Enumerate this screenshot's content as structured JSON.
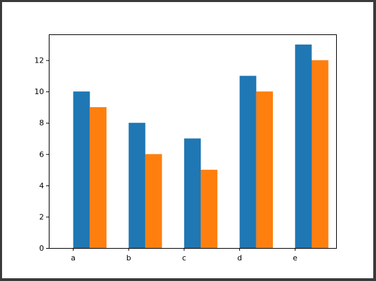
{
  "chart_data": {
    "type": "bar",
    "categories": [
      "a",
      "b",
      "c",
      "d",
      "e"
    ],
    "series": [
      {
        "values": [
          10,
          8,
          7,
          11,
          13
        ],
        "color": "#1f77b4"
      },
      {
        "values": [
          9,
          6,
          5,
          10,
          12
        ],
        "color": "#ff7f0e"
      }
    ],
    "title": "",
    "xlabel": "",
    "ylabel": "",
    "ylim": [
      0,
      13.65
    ],
    "yticks": [
      0,
      2,
      4,
      6,
      8,
      10,
      12
    ],
    "grid": false,
    "legend": "none"
  }
}
